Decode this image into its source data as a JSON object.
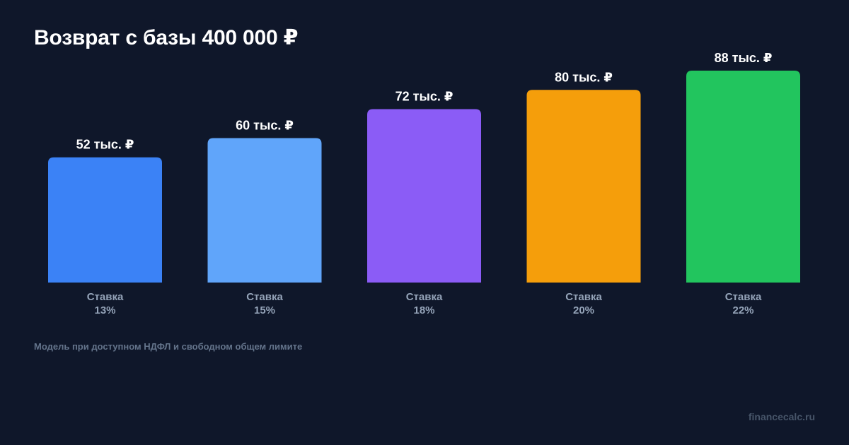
{
  "title": "Возврат с базы 400 000 ₽",
  "footnote": "Модель при доступном НДФЛ и свободном общем лимите",
  "site": "financecalc.ru",
  "chart_data": {
    "type": "bar",
    "categories": [
      {
        "line1": "Ставка",
        "line2": "13%"
      },
      {
        "line1": "Ставка",
        "line2": "15%"
      },
      {
        "line1": "Ставка",
        "line2": "18%"
      },
      {
        "line1": "Ставка",
        "line2": "20%"
      },
      {
        "line1": "Ставка",
        "line2": "22%"
      }
    ],
    "values": [
      52,
      60,
      72,
      80,
      88
    ],
    "value_labels": [
      "52 тыс. ₽",
      "60 тыс. ₽",
      "72 тыс. ₽",
      "80 тыс. ₽",
      "88 тыс. ₽"
    ],
    "colors": [
      "#3b82f6",
      "#60a5fa",
      "#8b5cf6",
      "#f59e0b",
      "#22c55e"
    ],
    "ylim": [
      0,
      88
    ],
    "grid": false,
    "background": "#0f172a"
  }
}
